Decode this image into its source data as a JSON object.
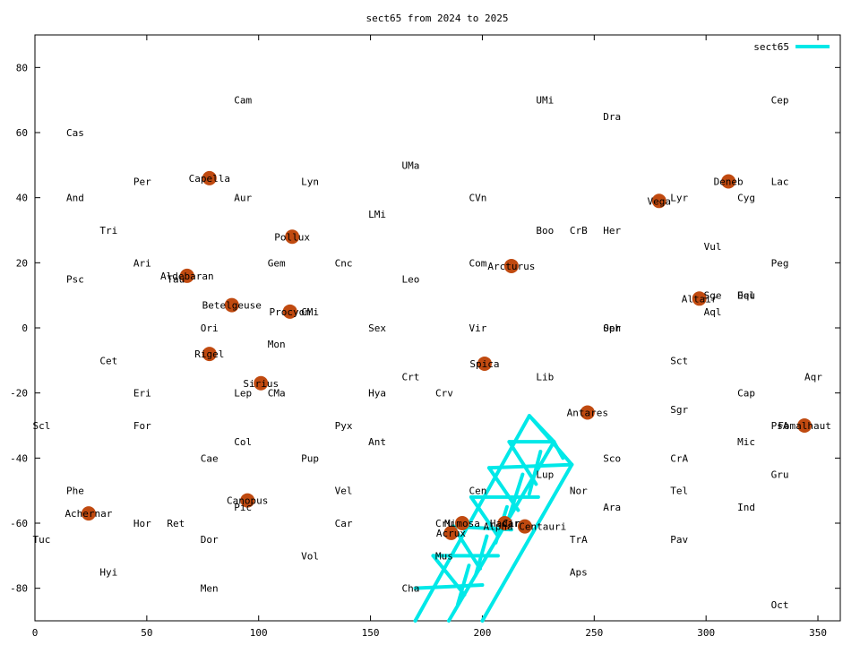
{
  "chart_data": {
    "type": "scatter",
    "title": "sect65 from 2024 to 2025",
    "xlim": [
      0,
      360
    ],
    "ylim": [
      -90,
      90
    ],
    "xticks": [
      0,
      50,
      100,
      150,
      200,
      250,
      300,
      350
    ],
    "yticks": [
      -80,
      -60,
      -40,
      -20,
      0,
      20,
      40,
      60,
      80
    ],
    "grid": false,
    "legend": {
      "position": "top-right",
      "label": "sect65",
      "color": "#00e8e8"
    },
    "star_color": "#c04a10",
    "track_color": "#00e8e8",
    "stars": [
      {
        "name": "Capella",
        "x": 78,
        "y": 46
      },
      {
        "name": "Aldebaran",
        "x": 68,
        "y": 16
      },
      {
        "name": "Betelgeuse",
        "x": 88,
        "y": 7
      },
      {
        "name": "Rigel",
        "x": 78,
        "y": -8
      },
      {
        "name": "Sirius",
        "x": 101,
        "y": -17
      },
      {
        "name": "Canopus",
        "x": 95,
        "y": -53
      },
      {
        "name": "Achernar",
        "x": 24,
        "y": -57
      },
      {
        "name": "Pollux",
        "x": 115,
        "y": 28
      },
      {
        "name": "Procyon",
        "x": 114,
        "y": 5
      },
      {
        "name": "Arcturus",
        "x": 213,
        "y": 19
      },
      {
        "name": "Spica",
        "x": 201,
        "y": -11
      },
      {
        "name": "Antares",
        "x": 247,
        "y": -26
      },
      {
        "name": "Mimosa",
        "x": 191,
        "y": -60
      },
      {
        "name": "Acrux",
        "x": 186,
        "y": -63
      },
      {
        "name": "Hadar",
        "x": 210,
        "y": -60
      },
      {
        "name": "Alpha Centauri",
        "x": 219,
        "y": -61
      },
      {
        "name": "Vega",
        "x": 279,
        "y": 39
      },
      {
        "name": "Deneb",
        "x": 310,
        "y": 45
      },
      {
        "name": "Altair",
        "x": 297,
        "y": 9
      },
      {
        "name": "Fomalhaut",
        "x": 344,
        "y": -30
      }
    ],
    "constellations": [
      {
        "name": "Cam",
        "x": 89,
        "y": 70
      },
      {
        "name": "UMi",
        "x": 224,
        "y": 70
      },
      {
        "name": "Cep",
        "x": 329,
        "y": 70
      },
      {
        "name": "Dra",
        "x": 254,
        "y": 65
      },
      {
        "name": "Cas",
        "x": 14,
        "y": 60
      },
      {
        "name": "UMa",
        "x": 164,
        "y": 50
      },
      {
        "name": "Per",
        "x": 44,
        "y": 45
      },
      {
        "name": "Lyn",
        "x": 119,
        "y": 45
      },
      {
        "name": "Lac",
        "x": 329,
        "y": 45
      },
      {
        "name": "And",
        "x": 14,
        "y": 40
      },
      {
        "name": "Aur",
        "x": 89,
        "y": 40
      },
      {
        "name": "CVn",
        "x": 194,
        "y": 40
      },
      {
        "name": "Lyr",
        "x": 284,
        "y": 40
      },
      {
        "name": "Cyg",
        "x": 314,
        "y": 40
      },
      {
        "name": "LMi",
        "x": 149,
        "y": 35
      },
      {
        "name": "Tri",
        "x": 29,
        "y": 30
      },
      {
        "name": "Boo",
        "x": 224,
        "y": 30
      },
      {
        "name": "CrB",
        "x": 239,
        "y": 30
      },
      {
        "name": "Her",
        "x": 254,
        "y": 30
      },
      {
        "name": "Vul",
        "x": 299,
        "y": 25
      },
      {
        "name": "Ari",
        "x": 44,
        "y": 20
      },
      {
        "name": "Gem",
        "x": 104,
        "y": 20
      },
      {
        "name": "Cnc",
        "x": 134,
        "y": 20
      },
      {
        "name": "Com",
        "x": 194,
        "y": 20
      },
      {
        "name": "Peg",
        "x": 329,
        "y": 20
      },
      {
        "name": "Psc",
        "x": 14,
        "y": 15
      },
      {
        "name": "Tau",
        "x": 59,
        "y": 15
      },
      {
        "name": "Leo",
        "x": 164,
        "y": 15
      },
      {
        "name": "Sge",
        "x": 299,
        "y": 10
      },
      {
        "name": "Equ",
        "x": 314,
        "y": 10
      },
      {
        "name": "Del",
        "x": 314,
        "y": 10
      },
      {
        "name": "CMi",
        "x": 119,
        "y": 5
      },
      {
        "name": "Aql",
        "x": 299,
        "y": 5
      },
      {
        "name": "Ori",
        "x": 74,
        "y": 0
      },
      {
        "name": "Sex",
        "x": 149,
        "y": 0
      },
      {
        "name": "Vir",
        "x": 194,
        "y": 0
      },
      {
        "name": "Oph",
        "x": 254,
        "y": 0
      },
      {
        "name": "Ser",
        "x": 254,
        "y": 0
      },
      {
        "name": "Mon",
        "x": 104,
        "y": -5
      },
      {
        "name": "Cet",
        "x": 29,
        "y": -10
      },
      {
        "name": "Sct",
        "x": 284,
        "y": -10
      },
      {
        "name": "Crt",
        "x": 164,
        "y": -15
      },
      {
        "name": "Lib",
        "x": 224,
        "y": -15
      },
      {
        "name": "Aqr",
        "x": 344,
        "y": -15
      },
      {
        "name": "Eri",
        "x": 44,
        "y": -20
      },
      {
        "name": "Lep",
        "x": 89,
        "y": -20
      },
      {
        "name": "CMa",
        "x": 104,
        "y": -20
      },
      {
        "name": "Hya",
        "x": 149,
        "y": -20
      },
      {
        "name": "Crv",
        "x": 179,
        "y": -20
      },
      {
        "name": "Cap",
        "x": 314,
        "y": -20
      },
      {
        "name": "Sgr",
        "x": 284,
        "y": -25
      },
      {
        "name": "Scl",
        "x": -1,
        "y": -30
      },
      {
        "name": "For",
        "x": 44,
        "y": -30
      },
      {
        "name": "Pyx",
        "x": 134,
        "y": -30
      },
      {
        "name": "PsA",
        "x": 329,
        "y": -30
      },
      {
        "name": "Col",
        "x": 89,
        "y": -35
      },
      {
        "name": "Ant",
        "x": 149,
        "y": -35
      },
      {
        "name": "Mic",
        "x": 314,
        "y": -35
      },
      {
        "name": "Cae",
        "x": 74,
        "y": -40
      },
      {
        "name": "Pup",
        "x": 119,
        "y": -40
      },
      {
        "name": "Sco",
        "x": 254,
        "y": -40
      },
      {
        "name": "CrA",
        "x": 284,
        "y": -40
      },
      {
        "name": "Gru",
        "x": 329,
        "y": -45
      },
      {
        "name": "Lup",
        "x": 224,
        "y": -45
      },
      {
        "name": "Phe",
        "x": 14,
        "y": -50
      },
      {
        "name": "Vel",
        "x": 134,
        "y": -50
      },
      {
        "name": "Cen",
        "x": 194,
        "y": -50
      },
      {
        "name": "Nor",
        "x": 239,
        "y": -50
      },
      {
        "name": "Tel",
        "x": 284,
        "y": -50
      },
      {
        "name": "Pic",
        "x": 89,
        "y": -55
      },
      {
        "name": "Ara",
        "x": 254,
        "y": -55
      },
      {
        "name": "Ind",
        "x": 314,
        "y": -55
      },
      {
        "name": "Hor",
        "x": 44,
        "y": -60
      },
      {
        "name": "Ret",
        "x": 59,
        "y": -60
      },
      {
        "name": "Car",
        "x": 134,
        "y": -60
      },
      {
        "name": "Cru",
        "x": 179,
        "y": -60
      },
      {
        "name": "Cir",
        "x": 209,
        "y": -60
      },
      {
        "name": "Tuc",
        "x": -1,
        "y": -65
      },
      {
        "name": "Dor",
        "x": 74,
        "y": -65
      },
      {
        "name": "TrA",
        "x": 239,
        "y": -65
      },
      {
        "name": "Pav",
        "x": 284,
        "y": -65
      },
      {
        "name": "Vol",
        "x": 119,
        "y": -70
      },
      {
        "name": "Mus",
        "x": 179,
        "y": -70
      },
      {
        "name": "Hyi",
        "x": 29,
        "y": -75
      },
      {
        "name": "Aps",
        "x": 239,
        "y": -75
      },
      {
        "name": "Men",
        "x": 74,
        "y": -80
      },
      {
        "name": "Cha",
        "x": 164,
        "y": -80
      },
      {
        "name": "Oct",
        "x": 329,
        "y": -85
      }
    ],
    "track_lines": [
      [
        [
          170,
          -90
        ],
        [
          221,
          -27
        ]
      ],
      [
        [
          185,
          -90
        ],
        [
          232,
          -35
        ]
      ],
      [
        [
          200,
          -90
        ],
        [
          240,
          -42
        ]
      ],
      [
        [
          221,
          -27
        ],
        [
          240,
          -42
        ]
      ],
      [
        [
          212,
          -35
        ],
        [
          232,
          -35
        ]
      ],
      [
        [
          203,
          -43
        ],
        [
          240,
          -42
        ]
      ],
      [
        [
          195,
          -52
        ],
        [
          225,
          -52
        ]
      ],
      [
        [
          187,
          -61
        ],
        [
          213,
          -62
        ]
      ],
      [
        [
          178,
          -70
        ],
        [
          207,
          -70
        ]
      ],
      [
        [
          170,
          -80
        ],
        [
          200,
          -79
        ]
      ],
      [
        [
          221,
          -27
        ],
        [
          232,
          -35
        ]
      ],
      [
        [
          232,
          -35
        ],
        [
          236,
          -40
        ]
      ],
      [
        [
          212,
          -35
        ],
        [
          224,
          -48
        ]
      ],
      [
        [
          203,
          -43
        ],
        [
          216,
          -56
        ]
      ],
      [
        [
          195,
          -52
        ],
        [
          207,
          -64
        ]
      ],
      [
        [
          187,
          -61
        ],
        [
          199,
          -74
        ]
      ],
      [
        [
          178,
          -70
        ],
        [
          192,
          -82
        ]
      ],
      [
        [
          226,
          -38
        ],
        [
          221,
          -51
        ]
      ],
      [
        [
          218,
          -45
        ],
        [
          212,
          -58
        ]
      ],
      [
        [
          211,
          -55
        ],
        [
          206,
          -66
        ]
      ],
      [
        [
          202,
          -64
        ],
        [
          197,
          -76
        ]
      ],
      [
        [
          194,
          -73
        ],
        [
          189,
          -85
        ]
      ]
    ]
  }
}
